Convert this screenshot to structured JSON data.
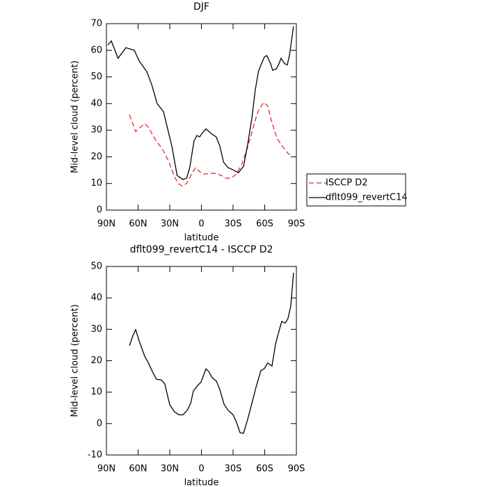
{
  "chart_data": [
    {
      "type": "line",
      "title": "DJF",
      "xlabel": "latitude",
      "ylabel": "Mid-level cloud (percent)",
      "xlim": [
        90,
        -90
      ],
      "xticks": [
        {
          "value": 90,
          "label": "90N"
        },
        {
          "value": 60,
          "label": "60N"
        },
        {
          "value": 30,
          "label": "30N"
        },
        0,
        {
          "value": -30,
          "label": "30S"
        },
        {
          "value": -60,
          "label": "60S"
        },
        {
          "value": -90,
          "label": "90S"
        }
      ],
      "ylim": [
        0,
        70
      ],
      "yticks": [
        0,
        10,
        20,
        30,
        40,
        50,
        60,
        70
      ],
      "legend": "right",
      "series": [
        {
          "name": "ISCCP D2",
          "color": "#e8262a",
          "linestyle": "dashed",
          "x": [
            68.2,
            62.3,
            53.7,
            50,
            43,
            37,
            30.7,
            26,
            22,
            18,
            14,
            10,
            5.6,
            3,
            -1,
            -10,
            -13.5,
            -19,
            -23,
            -28,
            -33,
            -38,
            -42.5,
            -47,
            -50.4,
            -53.7,
            -59,
            -63,
            -66,
            -71.5,
            -76.8,
            -82.7,
            -86.7
          ],
          "values": [
            35.8,
            29.5,
            32.5,
            31,
            26,
            23,
            18,
            13,
            10,
            9,
            10,
            13,
            16,
            15,
            13.5,
            13.8,
            13.8,
            13,
            12,
            12,
            13.5,
            17,
            22,
            28,
            33,
            37,
            40.5,
            39,
            34,
            27,
            24,
            21,
            21
          ]
        },
        {
          "name": "dflt099_revertC14",
          "color": "#000000",
          "linestyle": "solid",
          "x": [
            88.7,
            85.4,
            79,
            71.5,
            63.6,
            59,
            51.8,
            47,
            42,
            36,
            28,
            23,
            17.5,
            14,
            11,
            7,
            4.3,
            1.7,
            -1,
            -4.3,
            -10,
            -14,
            -17.5,
            -21,
            -25,
            -30.6,
            -35,
            -40,
            -44,
            -48,
            -51,
            -54,
            -57,
            -59.7,
            -62,
            -65.6,
            -67.5,
            -71,
            -73.5,
            -75.5,
            -78.8,
            -81.4,
            -83.4,
            -87.3
          ],
          "values": [
            62,
            63.5,
            57,
            61,
            60,
            56,
            52,
            47,
            40,
            37,
            24,
            13,
            11.5,
            12,
            16,
            26,
            28,
            27.5,
            29,
            30.5,
            28.5,
            27.5,
            24,
            18,
            16,
            15,
            14,
            16.5,
            25,
            35,
            45,
            52,
            55,
            57.5,
            58,
            55,
            52.5,
            53,
            55,
            57,
            55,
            54.5,
            58,
            69
          ]
        }
      ]
    },
    {
      "type": "line",
      "title": "dflt099_revertC14 - ISCCP D2",
      "xlabel": "latitude",
      "ylabel": "Mid-level cloud (percent)",
      "xlim": [
        90,
        -90
      ],
      "xticks": [
        {
          "value": 90,
          "label": "90N"
        },
        {
          "value": 60,
          "label": "60N"
        },
        {
          "value": 30,
          "label": "30N"
        },
        0,
        {
          "value": -30,
          "label": "30S"
        },
        {
          "value": -60,
          "label": "60S"
        },
        {
          "value": -90,
          "label": "90S"
        }
      ],
      "ylim": [
        -10,
        50
      ],
      "yticks": [
        -10,
        0,
        10,
        20,
        30,
        40,
        50
      ],
      "series": [
        {
          "color": "#000000",
          "linestyle": "solid",
          "x": [
            68.2,
            64.9,
            62.3,
            59,
            53.7,
            50.4,
            45.8,
            42.5,
            38,
            34.7,
            30,
            25.4,
            21.4,
            17.5,
            13.5,
            10.2,
            7.6,
            3.6,
            0.4,
            -4.3,
            -6.9,
            -10.2,
            -14.2,
            -17.5,
            -21.4,
            -25.4,
            -30,
            -33.3,
            -36.6,
            -39.9,
            -43.8,
            -47.8,
            -51.7,
            -56.3,
            -59.6,
            -62.9,
            -66.9,
            -70.2,
            -73.5,
            -76.1,
            -79.4,
            -82,
            -84.7,
            -87.3
          ],
          "values": [
            24.8,
            28,
            29.9,
            26.3,
            21.4,
            19.4,
            16.1,
            14.1,
            13.9,
            12.6,
            6,
            3.7,
            2.8,
            2.8,
            4.2,
            6.4,
            10.4,
            12.1,
            13.2,
            17.4,
            16.6,
            14.6,
            13.5,
            10.8,
            6.2,
            4.2,
            2.8,
            0.4,
            -2.9,
            -3.1,
            1.3,
            6.4,
            11.5,
            16.8,
            17.5,
            19.3,
            18.3,
            25.2,
            29.4,
            32.5,
            32,
            33.4,
            37.4,
            48
          ]
        }
      ]
    }
  ]
}
